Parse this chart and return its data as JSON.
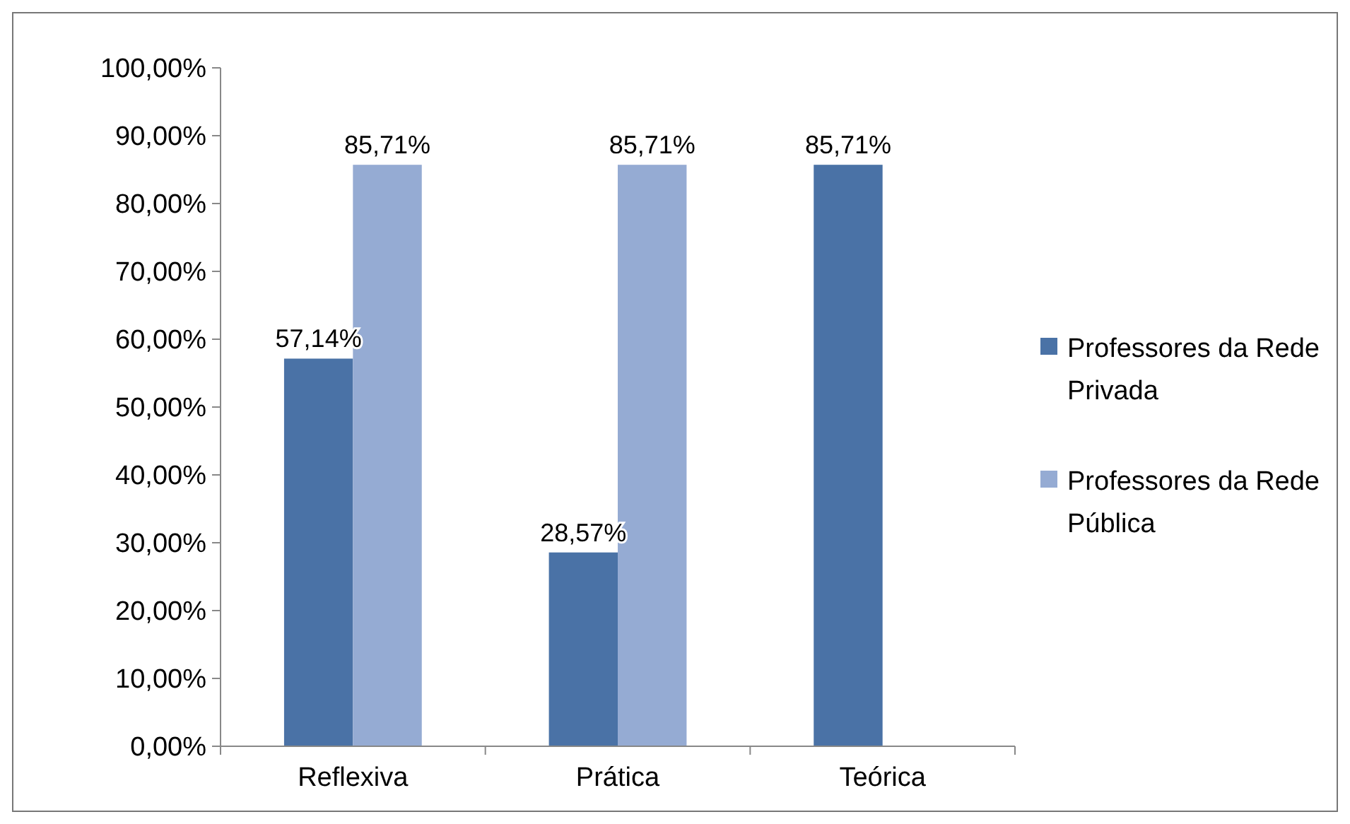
{
  "chart_data": {
    "type": "bar",
    "categories": [
      "Reflexiva",
      "Prática",
      "Teórica"
    ],
    "series": [
      {
        "name": "Professores da Rede Privada",
        "color": "#4a72a6",
        "values": [
          57.14,
          28.57,
          85.71
        ],
        "value_labels": [
          "57,14%",
          "28,57%",
          "85,71%"
        ]
      },
      {
        "name": "Professores da Rede Pública",
        "color": "#95abd3",
        "values": [
          85.71,
          85.71,
          null
        ],
        "value_labels": [
          "85,71%",
          "85,71%",
          null
        ]
      }
    ],
    "ylim": [
      0,
      100
    ],
    "yticks": [
      {
        "value": 0,
        "label": "0,00%"
      },
      {
        "value": 10,
        "label": "10,00%"
      },
      {
        "value": 20,
        "label": "20,00%"
      },
      {
        "value": 30,
        "label": "30,00%"
      },
      {
        "value": 40,
        "label": "40,00%"
      },
      {
        "value": 50,
        "label": "50,00%"
      },
      {
        "value": 60,
        "label": "60,00%"
      },
      {
        "value": 70,
        "label": "70,00%"
      },
      {
        "value": 80,
        "label": "80,00%"
      },
      {
        "value": 90,
        "label": "90,00%"
      },
      {
        "value": 100,
        "label": "100,00%"
      }
    ],
    "grid": false,
    "legend": "right"
  }
}
